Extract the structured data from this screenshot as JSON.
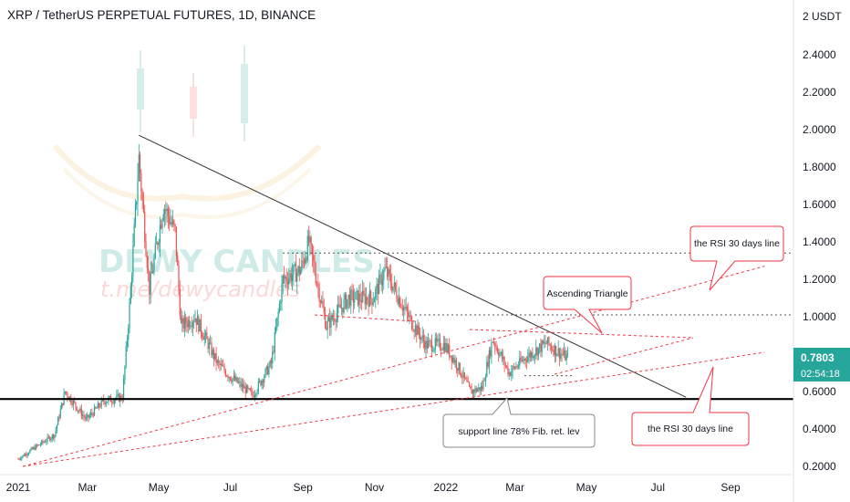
{
  "header": {
    "title": "XRP / TetherUS PERPETUAL FUTURES, 1D, BINANCE"
  },
  "watermark": {
    "line1": "DEWY CANDLES",
    "line2": "t.me/dewycandles"
  },
  "price_axis": {
    "unit": "USDT",
    "current_price": "0.7803",
    "countdown": "02:54:18",
    "price_tag_color": "#26a69a"
  },
  "colors": {
    "up": "#26a69a",
    "down": "#ef5350",
    "trend_line": "#333333",
    "support_line": "#000000",
    "red_dashed": "#f23645",
    "grid_text": "#131722"
  },
  "chart_data": {
    "type": "candlestick",
    "title": "XRP / TetherUS PERPETUAL FUTURES, 1D, BINANCE",
    "x_ticks": [
      "2021",
      "Mar",
      "May",
      "Jul",
      "Sep",
      "Nov",
      "2022",
      "Mar",
      "May",
      "Jul",
      "Sep"
    ],
    "y_ticks": [
      "0.2000",
      "0.4000",
      "0.6000",
      "0.8000",
      "1.0000",
      "1.2000",
      "1.4000",
      "1.6000",
      "1.8000",
      "2.0000",
      "2.2000",
      "2.4000",
      "2 USDT"
    ],
    "ylim": [
      0.2,
      2.5
    ],
    "current_price": 0.7803,
    "price_path": [
      [
        "2021-01-01",
        0.24
      ],
      [
        "2021-01-15",
        0.3
      ],
      [
        "2021-02-01",
        0.37
      ],
      [
        "2021-02-10",
        0.6
      ],
      [
        "2021-02-28",
        0.45
      ],
      [
        "2021-03-15",
        0.55
      ],
      [
        "2021-03-31",
        0.57
      ],
      [
        "2021-04-06",
        1.05
      ],
      [
        "2021-04-14",
        1.85
      ],
      [
        "2021-04-23",
        1.15
      ],
      [
        "2021-05-05",
        1.6
      ],
      [
        "2021-05-15",
        1.45
      ],
      [
        "2021-05-20",
        0.95
      ],
      [
        "2021-06-01",
        1.0
      ],
      [
        "2021-06-20",
        0.75
      ],
      [
        "2021-07-01",
        0.68
      ],
      [
        "2021-07-20",
        0.58
      ],
      [
        "2021-08-05",
        0.75
      ],
      [
        "2021-08-15",
        1.2
      ],
      [
        "2021-08-30",
        1.25
      ],
      [
        "2021-09-06",
        1.4
      ],
      [
        "2021-09-21",
        0.95
      ],
      [
        "2021-10-10",
        1.1
      ],
      [
        "2021-10-31",
        1.1
      ],
      [
        "2021-11-10",
        1.25
      ],
      [
        "2021-11-30",
        1.0
      ],
      [
        "2021-12-15",
        0.85
      ],
      [
        "2021-12-31",
        0.85
      ],
      [
        "2022-01-10",
        0.75
      ],
      [
        "2022-01-22",
        0.6
      ],
      [
        "2022-02-01",
        0.62
      ],
      [
        "2022-02-10",
        0.88
      ],
      [
        "2022-02-24",
        0.7
      ],
      [
        "2022-03-10",
        0.78
      ],
      [
        "2022-03-28",
        0.86
      ],
      [
        "2022-04-05",
        0.82
      ],
      [
        "2022-04-15",
        0.78
      ]
    ],
    "annotations": [
      {
        "type": "callout",
        "text": "the RSI 30 days line"
      },
      {
        "type": "callout",
        "text": "Ascending Triangle"
      },
      {
        "type": "callout",
        "text": "support line 78% Fib. ret. lev"
      },
      {
        "type": "callout",
        "text": "the RSI 30 days line"
      }
    ],
    "horizontal_levels": [
      {
        "price": 0.56,
        "style": "solid",
        "color": "#000000"
      },
      {
        "price": 1.34,
        "style": "dotted",
        "color": "#555555"
      },
      {
        "price": 1.01,
        "style": "dotted",
        "color": "#555555"
      },
      {
        "price": 0.685,
        "style": "dotted",
        "color": "#555555"
      }
    ],
    "trend_lines": [
      {
        "from": [
          "2021-04-14",
          1.97
        ],
        "to": [
          "2022-07-25",
          0.57
        ],
        "style": "solid"
      },
      {
        "from": [
          "2021-01-05",
          0.2
        ],
        "to": [
          "2022-09-30",
          1.27
        ],
        "style": "dashed"
      },
      {
        "from": [
          "2021-01-05",
          0.2
        ],
        "to": [
          "2022-09-30",
          0.81
        ],
        "style": "dashed"
      }
    ],
    "grid": false,
    "legend": "none"
  }
}
